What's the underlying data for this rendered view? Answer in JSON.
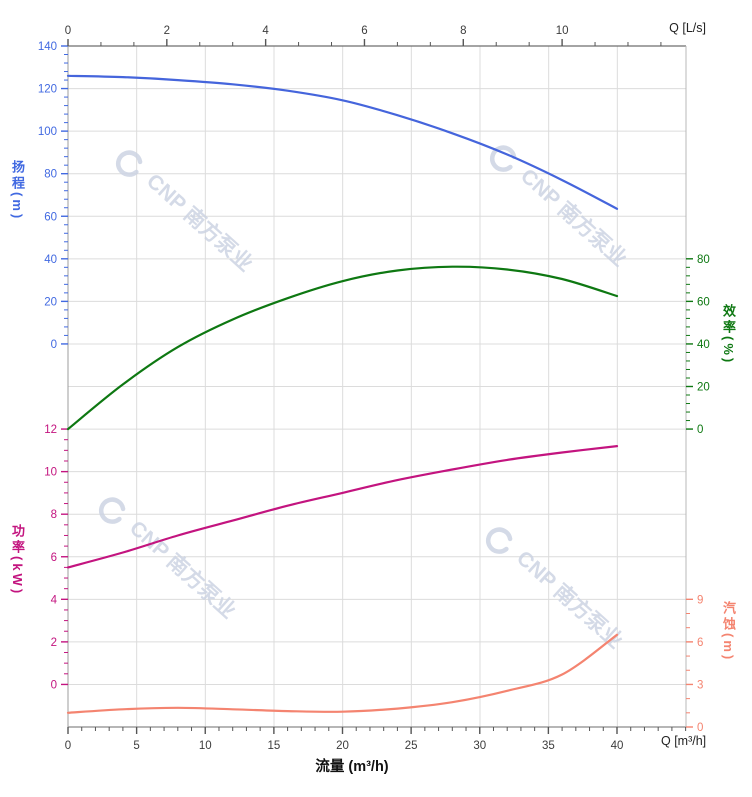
{
  "chart": {
    "watermark": {
      "text": "CNP 南方泵业",
      "color": "#cdd4e3"
    },
    "axes": {
      "top": {
        "title": "Q [L/s]",
        "tick_labels": [
          "0",
          "2",
          "4",
          "6",
          "8",
          "10"
        ]
      },
      "bottom": {
        "axis_title": "Q [m³/h]",
        "xlabel": "流量 (m³/h)",
        "tick_labels": [
          "0",
          "5",
          "10",
          "15",
          "20",
          "25",
          "30",
          "35",
          "40"
        ]
      },
      "head": {
        "title": "扬程(m)",
        "tick_labels": [
          "140",
          "120",
          "100",
          "80",
          "60",
          "40",
          "20",
          "0"
        ],
        "color": "#4169e1"
      },
      "power": {
        "title": "功率(kW)",
        "tick_labels": [
          "12",
          "10",
          "8",
          "6",
          "4",
          "2",
          "0"
        ],
        "color": "#c3147f"
      },
      "efficiency": {
        "title": "效率(%)",
        "tick_labels": [
          "80",
          "60",
          "40",
          "20",
          "0"
        ],
        "color": "#0e7812"
      },
      "npsh": {
        "title": "汽蚀(m)",
        "tick_labels": [
          "9",
          "6",
          "3",
          "0"
        ],
        "color": "#f48470"
      }
    }
  },
  "chart_data": {
    "type": "line",
    "title": "",
    "x_label": "流量 (m³/h)",
    "x_secondary_label": "Q [L/s]",
    "x": [
      0,
      4,
      8,
      12,
      16,
      20,
      24,
      28,
      32,
      36,
      40
    ],
    "x_range_m3h": [
      0,
      40
    ],
    "top_axis_ticks_Ls": [
      0,
      2,
      4,
      6,
      8,
      10
    ],
    "grid": true,
    "legend": "none",
    "axis_ranges": {
      "head_m": [
        0,
        140
      ],
      "power_kW": [
        0,
        12
      ],
      "efficiency_pct": [
        0,
        80
      ],
      "npsh_m": [
        0,
        9
      ]
    },
    "series": [
      {
        "name": "head",
        "label": "扬程",
        "unit": "m",
        "axis_key": "head",
        "color": "#4565dc",
        "values": [
          126,
          125.4,
          124,
          122,
          119,
          114.5,
          107.5,
          99,
          89,
          77,
          63.5
        ]
      },
      {
        "name": "efficiency",
        "label": "效率",
        "unit": "%",
        "axis_key": "efficiency",
        "color": "#0e7812",
        "values": [
          0,
          21,
          38.5,
          51.5,
          61.5,
          69.5,
          74.5,
          76.3,
          75,
          70.5,
          62.5
        ]
      },
      {
        "name": "power",
        "label": "功率",
        "unit": "kW",
        "axis_key": "power",
        "color": "#c3147f",
        "values": [
          5.5,
          6.2,
          7.0,
          7.7,
          8.4,
          9.0,
          9.6,
          10.1,
          10.55,
          10.9,
          11.2
        ]
      },
      {
        "name": "npsh",
        "label": "汽蚀",
        "unit": "m",
        "axis_key": "npsh",
        "color": "#f48470",
        "values": [
          1.0,
          1.25,
          1.35,
          1.25,
          1.12,
          1.08,
          1.3,
          1.75,
          2.55,
          3.7,
          6.5
        ]
      }
    ]
  }
}
